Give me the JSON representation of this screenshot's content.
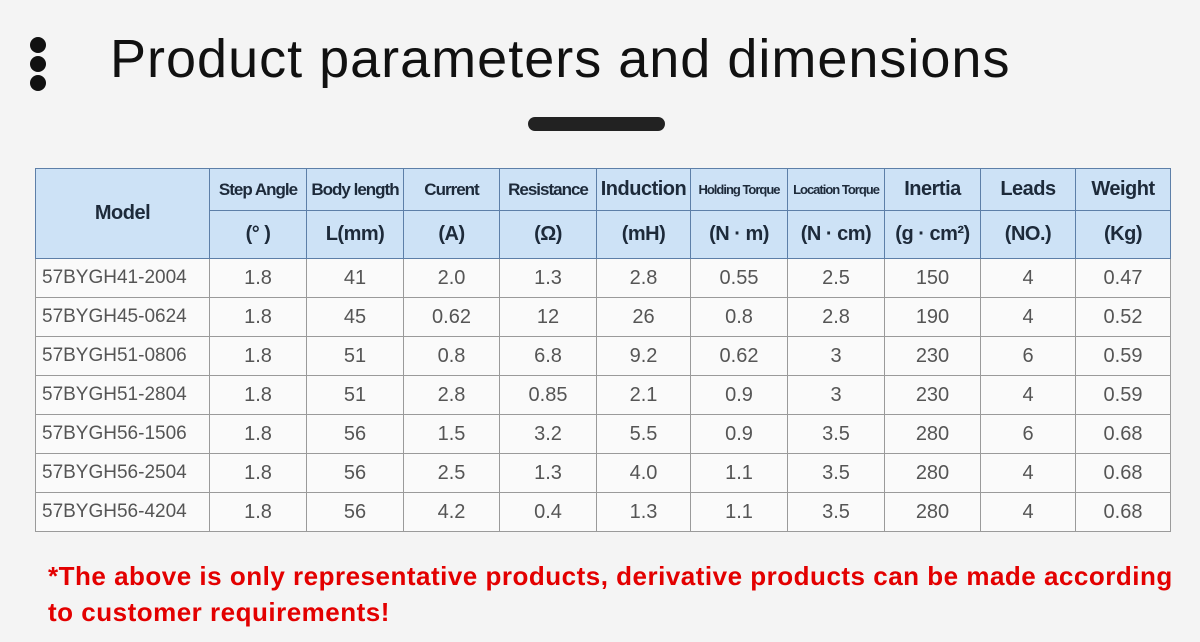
{
  "header": {
    "title": "Product parameters and dimensions"
  },
  "table": {
    "model_header": "Model",
    "columns": [
      {
        "name": "Step Angle",
        "unit": "(° )"
      },
      {
        "name": "Body length",
        "unit": "L(mm)"
      },
      {
        "name": "Current",
        "unit": "(A)"
      },
      {
        "name": "Resistance",
        "unit": "(Ω)"
      },
      {
        "name": "Induction",
        "unit": "(mH)"
      },
      {
        "name": "Holding Torque",
        "unit": "(N · m)"
      },
      {
        "name": "Location Torque",
        "unit": "(N · cm)"
      },
      {
        "name": "Inertia",
        "unit": "(g · cm²)"
      },
      {
        "name": "Leads",
        "unit": "(NO.)"
      },
      {
        "name": "Weight",
        "unit": "(Kg)"
      }
    ],
    "rows": [
      [
        "57BYGH41-2004",
        "1.8",
        "41",
        "2.0",
        "1.3",
        "2.8",
        "0.55",
        "2.5",
        "150",
        "4",
        "0.47"
      ],
      [
        "57BYGH45-0624",
        "1.8",
        "45",
        "0.62",
        "12",
        "26",
        "0.8",
        "2.8",
        "190",
        "4",
        "0.52"
      ],
      [
        "57BYGH51-0806",
        "1.8",
        "51",
        "0.8",
        "6.8",
        "9.2",
        "0.62",
        "3",
        "230",
        "6",
        "0.59"
      ],
      [
        "57BYGH51-2804",
        "1.8",
        "51",
        "2.8",
        "0.85",
        "2.1",
        "0.9",
        "3",
        "230",
        "4",
        "0.59"
      ],
      [
        "57BYGH56-1506",
        "1.8",
        "56",
        "1.5",
        "3.2",
        "5.5",
        "0.9",
        "3.5",
        "280",
        "6",
        "0.68"
      ],
      [
        "57BYGH56-2504",
        "1.8",
        "56",
        "2.5",
        "1.3",
        "4.0",
        "1.1",
        "3.5",
        "280",
        "4",
        "0.68"
      ],
      [
        "57BYGH56-4204",
        "1.8",
        "56",
        "4.2",
        "0.4",
        "1.3",
        "1.1",
        "3.5",
        "280",
        "4",
        "0.68"
      ]
    ]
  },
  "note": "*The above is only representative products, derivative products can be made according to customer requirements!"
}
